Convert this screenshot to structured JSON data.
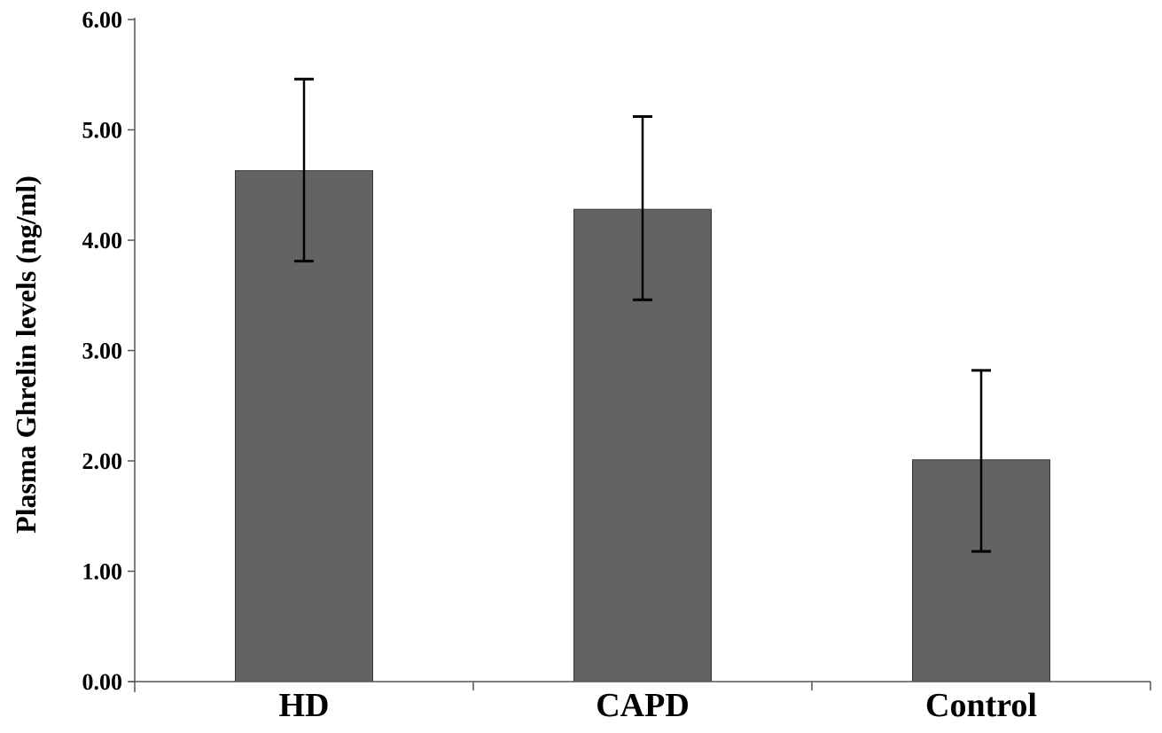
{
  "chart_data": {
    "type": "bar",
    "title": "",
    "xlabel": "",
    "ylabel": "Plasma Ghrelin levels (ng/ml)",
    "categories": [
      "HD",
      "CAPD",
      "Control"
    ],
    "values": [
      4.63,
      4.28,
      2.01
    ],
    "error_upper": [
      5.46,
      5.12,
      2.82
    ],
    "error_lower": [
      3.81,
      3.46,
      1.18
    ],
    "ylim": [
      0,
      6
    ],
    "yticks": [
      "0.00",
      "1.00",
      "2.00",
      "3.00",
      "4.00",
      "5.00",
      "6.00"
    ],
    "grid": false,
    "legend": "none",
    "bar_color": "#636363",
    "axis_color": "#555555"
  }
}
